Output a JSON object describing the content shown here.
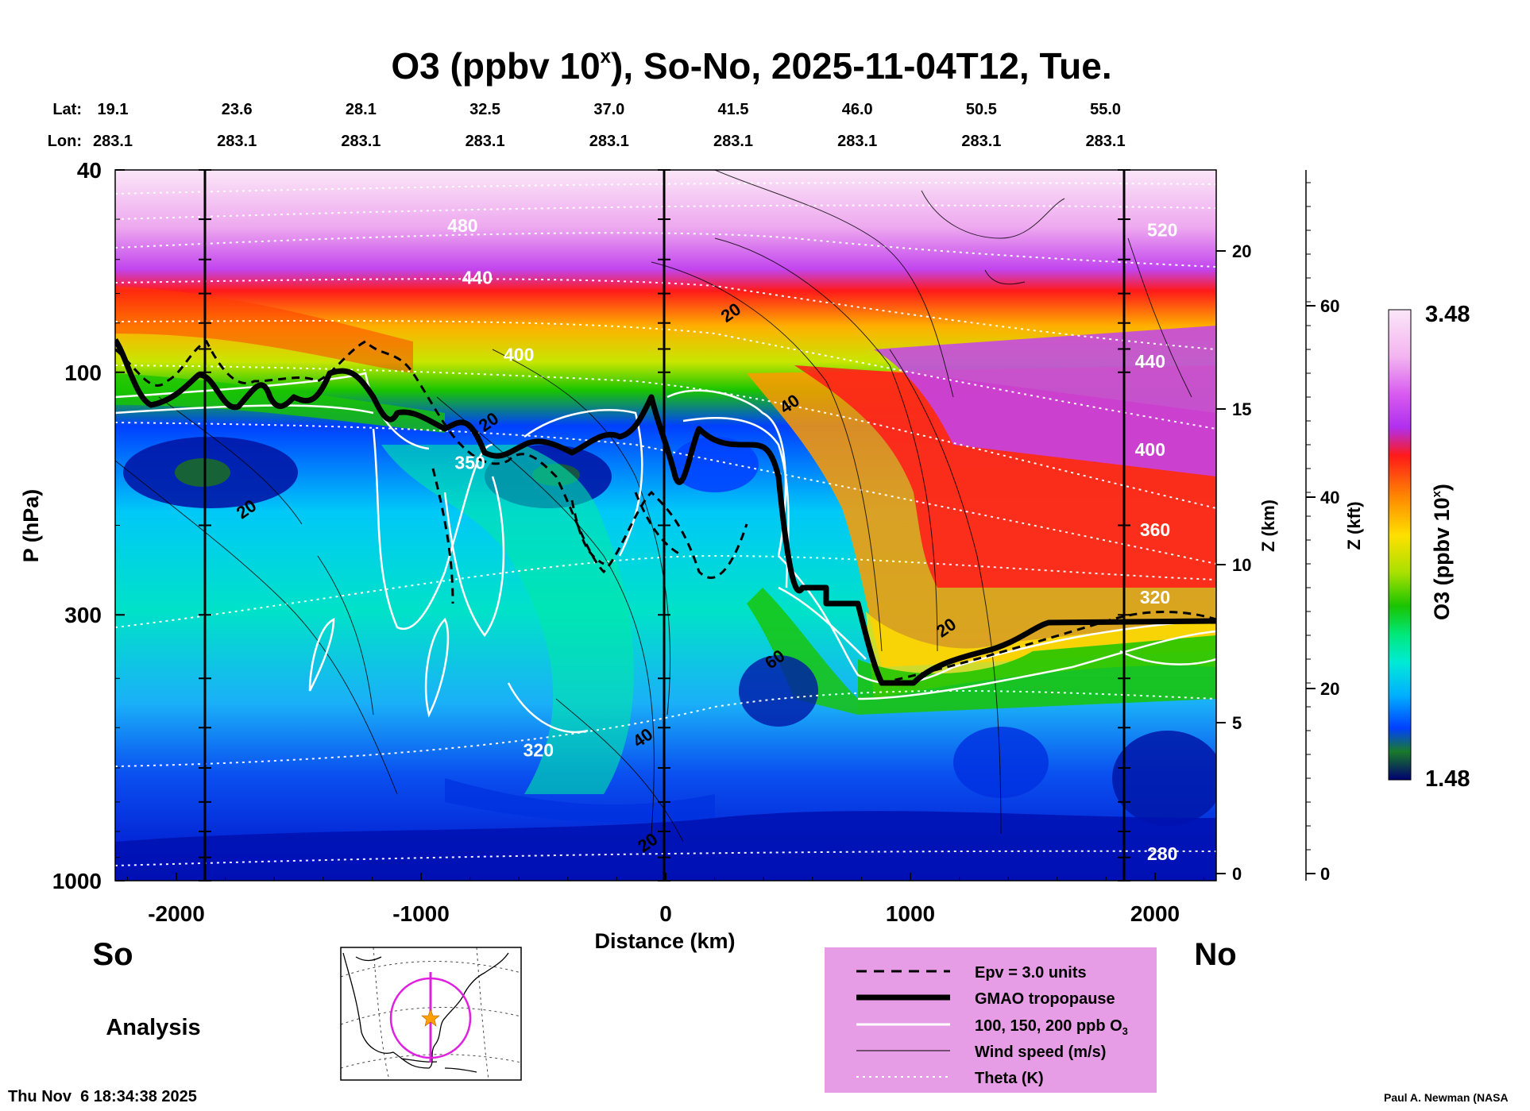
{
  "title": {
    "main": "O3 (ppbv 10",
    "sup": "x",
    "rest": "), So-No, 2025-11-04T12, Tue."
  },
  "header": {
    "lat_label": "Lat:",
    "lon_label": "Lon:",
    "lats": [
      "19.1",
      "23.6",
      "28.1",
      "32.5",
      "37.0",
      "41.5",
      "46.0",
      "50.5",
      "55.0"
    ],
    "lons": [
      "283.1",
      "283.1",
      "283.1",
      "283.1",
      "283.1",
      "283.1",
      "283.1",
      "283.1",
      "283.1"
    ]
  },
  "ends": {
    "south": "So",
    "north": "No"
  },
  "analysis_label": "Analysis",
  "timestamp": "Thu Nov  6 18:34:38 2025",
  "credit": "Paul A. Newman (NASA",
  "colorbar": {
    "max": "3.48",
    "min": "1.48",
    "label": "O3 (ppbv 10",
    "label_sup": "x",
    "label_end": ")"
  },
  "legend": [
    {
      "label": "Epv = 3.0 units",
      "style": "dashed-black"
    },
    {
      "label": "GMAO tropopause",
      "style": "thick-black"
    },
    {
      "label": "100, 150, 200 ppb O",
      "sub": "3",
      "style": "white"
    },
    {
      "label": "Wind speed (m/s)",
      "style": "thin-black"
    },
    {
      "label": "Theta (K)",
      "style": "dotted-white"
    }
  ],
  "colors": {
    "legend_bg": "#e79de5",
    "inset_track": "#e020e0",
    "inset_star": "#ffa000"
  },
  "chart_data": {
    "type": "heatmap",
    "xlabel": "Distance (km)",
    "ylabel": "P (hPa)",
    "y2label": "Z (km)",
    "y3label": "Z (kft)",
    "xlim": [
      -2250,
      2250
    ],
    "ylim": [
      1000,
      40
    ],
    "y_scale": "log",
    "x_ticks": [
      -2000,
      -1000,
      0,
      1000,
      2000
    ],
    "x_tick_labels": [
      "-2000",
      "-1000",
      "0",
      "1000",
      "2000"
    ],
    "y_ticks": [
      40,
      100,
      300,
      1000
    ],
    "y_tick_labels": [
      "40",
      "100",
      "300",
      "1000"
    ],
    "z_km_ticks": [
      "0",
      "5",
      "10",
      "15",
      "20"
    ],
    "z_kft_ticks": [
      "0",
      "20",
      "40",
      "60"
    ],
    "theta_labels": [
      {
        "text": "480",
        "x": -830,
        "p": 53
      },
      {
        "text": "440",
        "x": -770,
        "p": 67
      },
      {
        "text": "400",
        "x": -600,
        "p": 95
      },
      {
        "text": "350",
        "x": -800,
        "p": 155
      },
      {
        "text": "320",
        "x": -520,
        "p": 570
      },
      {
        "text": "520",
        "x": 2030,
        "p": 54
      },
      {
        "text": "440",
        "x": 1980,
        "p": 98
      },
      {
        "text": "400",
        "x": 1980,
        "p": 146
      },
      {
        "text": "360",
        "x": 2000,
        "p": 210
      },
      {
        "text": "320",
        "x": 2000,
        "p": 285
      },
      {
        "text": "280",
        "x": 2030,
        "p": 910
      }
    ],
    "wind_labels": [
      {
        "text": "20",
        "x": -1700,
        "p": 190
      },
      {
        "text": "20",
        "x": -710,
        "p": 128
      },
      {
        "text": "20",
        "x": 280,
        "p": 78
      },
      {
        "text": "40",
        "x": 520,
        "p": 118
      },
      {
        "text": "60",
        "x": 460,
        "p": 375
      },
      {
        "text": "40",
        "x": -80,
        "p": 535
      },
      {
        "text": "20",
        "x": -60,
        "p": 860
      },
      {
        "text": "20",
        "x": 1160,
        "p": 325
      }
    ]
  }
}
